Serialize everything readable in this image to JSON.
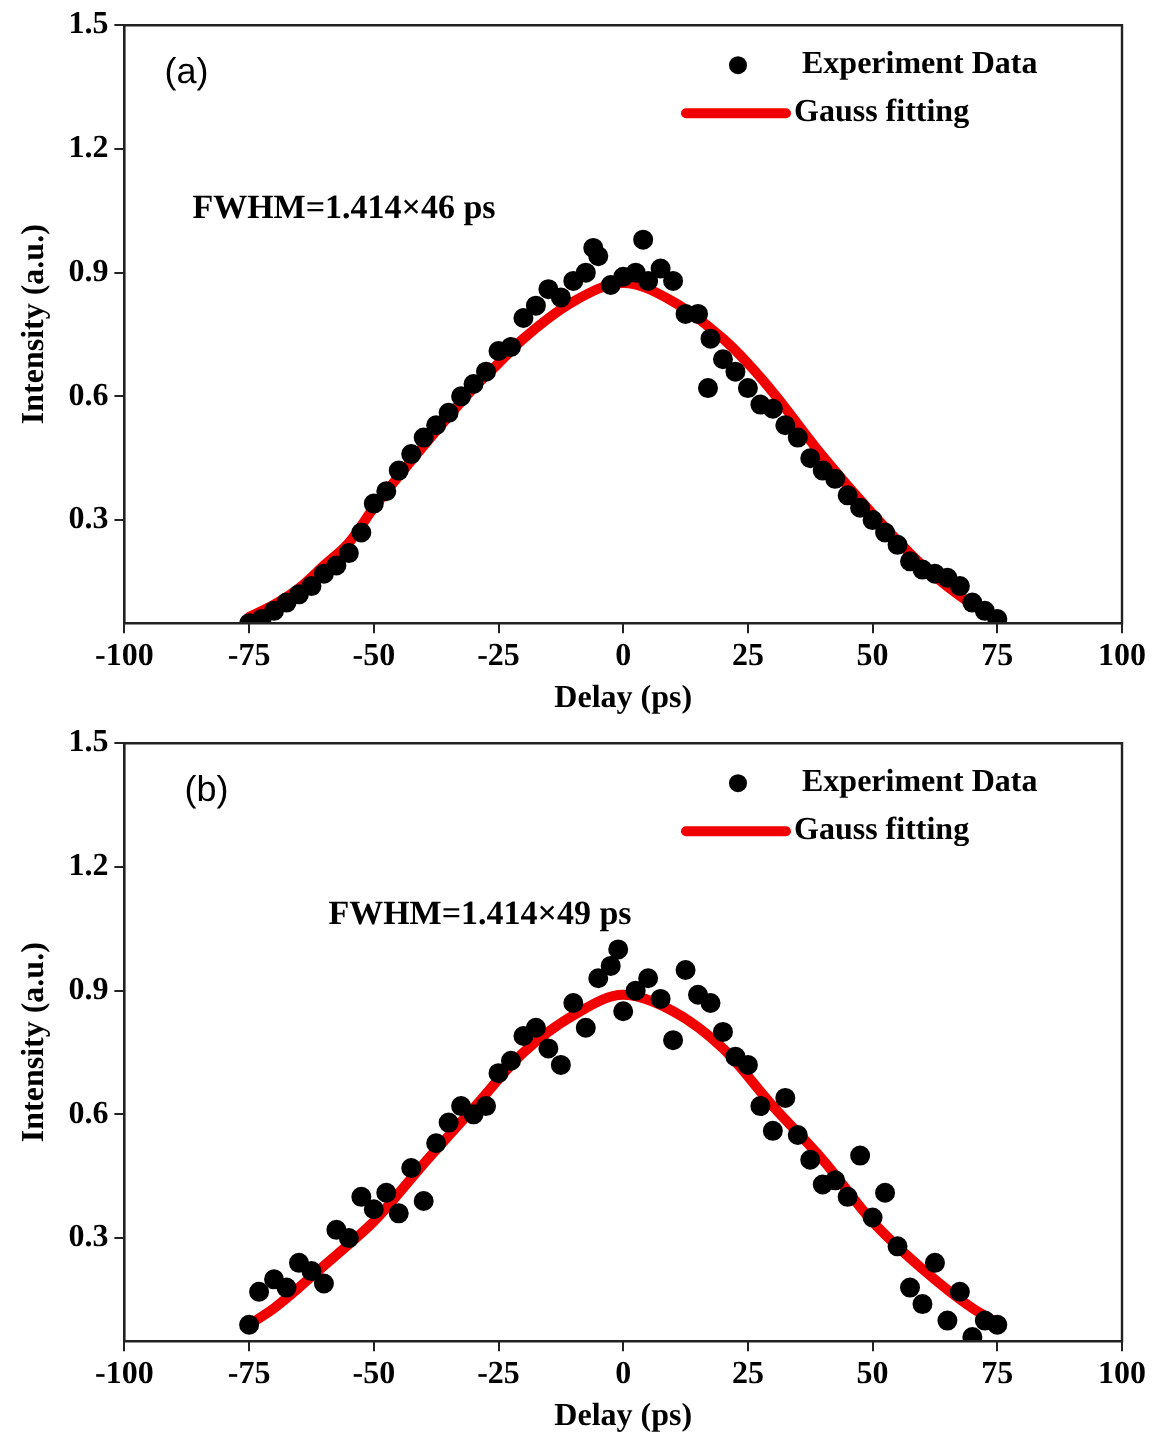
{
  "chart_data": [
    {
      "type": "scatter",
      "xlabel": "Delay (ps)",
      "ylabel": "Intensity (a.u.)",
      "annotations": [
        "(a)",
        "FWHM=1.414×46 ps"
      ],
      "xlim": [
        -100,
        100
      ],
      "xticks": [
        -100,
        -75,
        -50,
        -25,
        0,
        25,
        50,
        75,
        100
      ],
      "ylim": [
        0.05,
        1.5
      ],
      "yticks": [
        0.3,
        0.6,
        0.9,
        1.2,
        1.5
      ],
      "grid": false,
      "legend": "top right",
      "marker": "circle",
      "series": [
        {
          "name": "Experiment Data",
          "color": "#000000",
          "x": [
            -75,
            -72.5,
            -70,
            -67.5,
            -65,
            -62.5,
            -60,
            -57.5,
            -55,
            -52.5,
            -50,
            -47.5,
            -45,
            -42.5,
            -40,
            -37.5,
            -35,
            -32.5,
            -30,
            -27.5,
            -25,
            -22.5,
            -20,
            -17.5,
            -15,
            -12.5,
            -10,
            -7.5,
            -6,
            -5,
            -2.5,
            0,
            2.5,
            4,
            5,
            7.5,
            10,
            12.5,
            15,
            17,
            17.5,
            20,
            22.5,
            25,
            27.5,
            30,
            32.5,
            35,
            37.5,
            40,
            42.5,
            45,
            47.5,
            50,
            52.5,
            55,
            57.5,
            60,
            62.5,
            65,
            67.5,
            70,
            72.5,
            75
          ],
          "values": [
            0.05,
            0.06,
            0.08,
            0.1,
            0.12,
            0.14,
            0.17,
            0.19,
            0.22,
            0.27,
            0.34,
            0.37,
            0.42,
            0.46,
            0.5,
            0.53,
            0.56,
            0.6,
            0.63,
            0.66,
            0.71,
            0.72,
            0.79,
            0.82,
            0.86,
            0.84,
            0.88,
            0.9,
            0.96,
            0.94,
            0.87,
            0.89,
            0.9,
            0.98,
            0.88,
            0.91,
            0.88,
            0.8,
            0.8,
            0.62,
            0.74,
            0.69,
            0.66,
            0.62,
            0.58,
            0.57,
            0.53,
            0.5,
            0.45,
            0.42,
            0.4,
            0.36,
            0.33,
            0.3,
            0.27,
            0.24,
            0.2,
            0.18,
            0.17,
            0.16,
            0.14,
            0.1,
            0.08,
            0.06
          ]
        },
        {
          "name": "Gauss fitting",
          "type": "line",
          "color": "#f00000",
          "marker": "none",
          "x": [
            -75,
            -70,
            -65,
            -60,
            -55,
            -50,
            -40,
            -30,
            -25,
            -20,
            -10,
            0,
            10,
            20,
            25,
            30,
            40,
            50,
            60,
            70,
            75
          ],
          "values": [
            0.065,
            0.095,
            0.135,
            0.19,
            0.245,
            0.33,
            0.48,
            0.62,
            0.68,
            0.74,
            0.83,
            0.875,
            0.83,
            0.74,
            0.68,
            0.61,
            0.455,
            0.315,
            0.19,
            0.095,
            0.06
          ]
        }
      ]
    },
    {
      "type": "scatter",
      "xlabel": "Delay (ps)",
      "ylabel": "Intensity (a.u.)",
      "annotations": [
        "(b)",
        "FWHM=1.414×49 ps"
      ],
      "xlim": [
        -100,
        100
      ],
      "xticks": [
        -100,
        -75,
        -50,
        -25,
        0,
        25,
        50,
        75,
        100
      ],
      "ylim": [
        0.05,
        1.5
      ],
      "yticks": [
        0.3,
        0.6,
        0.9,
        1.2,
        1.5
      ],
      "grid": false,
      "legend": "top right",
      "marker": "circle",
      "series": [
        {
          "name": "Experiment Data",
          "color": "#000000",
          "x": [
            -75,
            -73,
            -70,
            -67.5,
            -65,
            -62.5,
            -60,
            -57.5,
            -55,
            -52.5,
            -50,
            -47.5,
            -45,
            -42.5,
            -40,
            -37.5,
            -35,
            -32.5,
            -30,
            -27.5,
            -25,
            -22.5,
            -20,
            -17.5,
            -15,
            -12.5,
            -10,
            -7.5,
            -5,
            -2.5,
            -1,
            0,
            2.5,
            5,
            7.5,
            10,
            12.5,
            15,
            17.5,
            20,
            22.5,
            25,
            27.5,
            30,
            32.5,
            35,
            37.5,
            40,
            42.5,
            45,
            47.5,
            50,
            52.5,
            55,
            57.5,
            60,
            62.5,
            65,
            67.5,
            70,
            72.5,
            75
          ],
          "values": [
            0.09,
            0.17,
            0.2,
            0.18,
            0.24,
            0.22,
            0.19,
            0.32,
            0.3,
            0.4,
            0.37,
            0.41,
            0.36,
            0.47,
            0.39,
            0.53,
            0.58,
            0.62,
            0.6,
            0.62,
            0.7,
            0.73,
            0.79,
            0.81,
            0.76,
            0.72,
            0.87,
            0.81,
            0.93,
            0.96,
            1.0,
            0.85,
            0.9,
            0.93,
            0.88,
            0.78,
            0.95,
            0.89,
            0.87,
            0.8,
            0.74,
            0.72,
            0.62,
            0.56,
            0.64,
            0.55,
            0.49,
            0.43,
            0.44,
            0.4,
            0.5,
            0.35,
            0.41,
            0.28,
            0.18,
            0.14,
            0.24,
            0.1,
            0.17,
            0.06,
            0.1,
            0.09
          ]
        },
        {
          "name": "Gauss fitting",
          "type": "line",
          "color": "#f00000",
          "marker": "none",
          "x": [
            -75,
            -70,
            -65,
            -60,
            -55,
            -50,
            -40,
            -30,
            -20,
            -10,
            0,
            10,
            20,
            30,
            40,
            50,
            60,
            70,
            75
          ],
          "values": [
            0.09,
            0.13,
            0.18,
            0.233,
            0.285,
            0.34,
            0.48,
            0.615,
            0.75,
            0.84,
            0.89,
            0.85,
            0.76,
            0.62,
            0.49,
            0.34,
            0.225,
            0.13,
            0.095
          ]
        }
      ]
    }
  ]
}
